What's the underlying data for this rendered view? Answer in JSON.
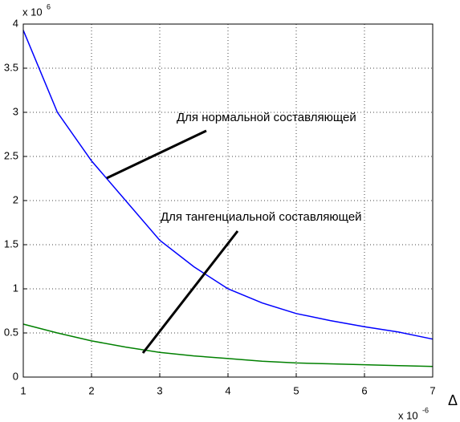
{
  "chart_data": {
    "type": "line",
    "x": [
      1,
      1.5,
      2,
      2.5,
      3,
      3.5,
      4,
      4.5,
      5,
      5.5,
      6,
      6.5,
      7
    ],
    "series": [
      {
        "color": "#0000ff",
        "values": [
          3.93,
          3.0,
          2.45,
          2.0,
          1.55,
          1.25,
          1.0,
          0.84,
          0.72,
          0.64,
          0.57,
          0.51,
          0.43
        ]
      },
      {
        "color": "#008000",
        "values": [
          0.6,
          0.5,
          0.41,
          0.34,
          0.28,
          0.24,
          0.21,
          0.18,
          0.16,
          0.15,
          0.14,
          0.13,
          0.12
        ]
      }
    ],
    "xlim": [
      1,
      7
    ],
    "xticks": [
      1,
      2,
      3,
      4,
      5,
      6,
      7
    ],
    "ylim": [
      0,
      4
    ],
    "yticks": [
      0,
      0.5,
      1,
      1.5,
      2,
      2.5,
      3,
      3.5,
      4
    ],
    "grid": true,
    "x_label": "Δ",
    "x_multiplier": {
      "base": "x 10",
      "exponent": "-6"
    },
    "y_multiplier": {
      "base": "x 10",
      "exponent": "6"
    },
    "annotations": [
      "Для нормальной составляющей",
      "Для тангенциальной составляющей"
    ]
  }
}
